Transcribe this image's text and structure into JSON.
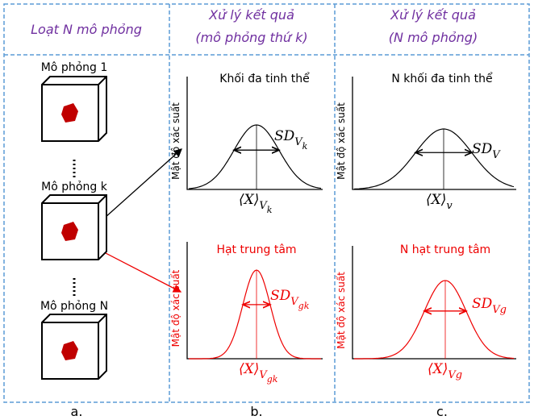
{
  "header": {
    "col_a": "Loạt N mô phỏng",
    "col_b": [
      "Xử lý kết quả",
      "(mô phỏng thứ k)"
    ],
    "col_c": [
      "Xử lý kết quả",
      "(N mô phỏng)"
    ]
  },
  "simulations": [
    "Mô phỏng 1",
    "Mô phỏng k",
    "Mô phỏng N"
  ],
  "panels": [
    {
      "title": "Khối đa tinh thể",
      "y_label": "Mật độ xác suất",
      "sd": {
        "main": "SD",
        "sub": "V",
        "subsub": "k"
      },
      "mean": {
        "main": "⟨X⟩",
        "sub": "V",
        "subsub": "k"
      }
    },
    {
      "title": "Hạt trung tâm",
      "y_label": "Mật độ xác suất",
      "sd": {
        "main": "SD",
        "sub": "V",
        "subsub": "gk"
      },
      "mean": {
        "main": "⟨X⟩",
        "sub": "V",
        "subsub": "gk"
      }
    },
    {
      "title": "N khối đa tinh thể",
      "y_label": "Mật độ xác suất",
      "sd": {
        "main": "SD",
        "sub": "V"
      },
      "mean": {
        "main": "⟨X⟩",
        "sub": "v"
      }
    },
    {
      "title": "N hạt trung tâm",
      "y_label": "Mật độ xác suất",
      "sd": {
        "main": "SD",
        "sub": "Vg"
      },
      "mean": {
        "main": "⟨X⟩",
        "sub": "Vg"
      }
    }
  ],
  "captions": [
    "a.",
    "b.",
    "c."
  ]
}
